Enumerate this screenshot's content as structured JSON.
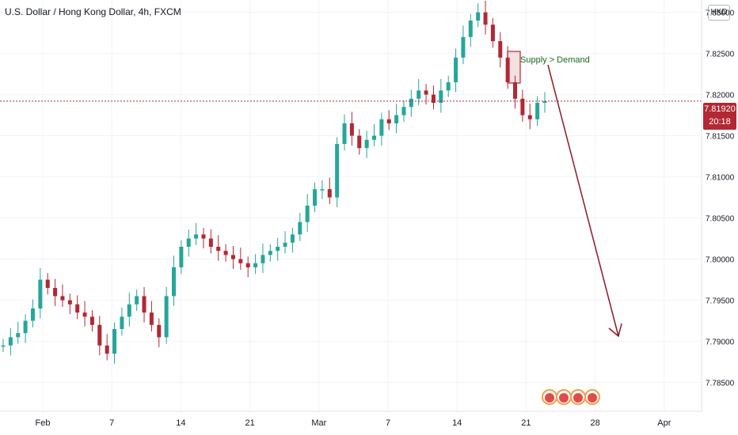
{
  "title": "U.S. Dollar / Hong Kong Dollar, 4h, FXCM",
  "currency": "HKD",
  "last_price": {
    "value": "7.81920",
    "countdown": "20:18"
  },
  "annotation": "Supply > Demand",
  "colors": {
    "up": "#26a69a",
    "down": "#b22833",
    "arrow": "#8b1a2b",
    "supply_box": "#b22833",
    "grid": "#f0f3fa",
    "price_line": "#b22833"
  },
  "badges": [
    "flag-icon",
    "flag-icon",
    "flag-icon",
    "flag-icon"
  ],
  "chart_data": {
    "type": "line",
    "title": "U.S. Dollar / Hong Kong Dollar, 4h, FXCM",
    "xlabel": "",
    "ylabel": "",
    "ylim": [
      7.7815,
      7.8315
    ],
    "y_ticks": [
      "7.83000",
      "7.82500",
      "7.82000",
      "7.81500",
      "7.81000",
      "7.80500",
      "7.80000",
      "7.79500",
      "7.79000",
      "7.78500"
    ],
    "x_ticks": [
      "Feb",
      "7",
      "14",
      "21",
      "Mar",
      "7",
      "14",
      "21",
      "28",
      "Apr"
    ],
    "grid": true,
    "series": [
      {
        "values": [
          7.7895,
          7.7905,
          7.791,
          7.7925,
          7.794,
          7.7975,
          7.7965,
          7.7955,
          7.795,
          7.7945,
          7.7935,
          7.793,
          7.792,
          7.7895,
          7.7885,
          7.7915,
          7.793,
          7.7945,
          7.7955,
          7.7935,
          7.792,
          7.7905,
          7.7955,
          7.799,
          7.8015,
          7.8025,
          7.803,
          7.8025,
          7.8015,
          7.801,
          7.8005,
          7.8,
          7.7995,
          7.799,
          7.7995,
          7.8005,
          7.801,
          7.8015,
          7.802,
          7.803,
          7.8045,
          7.8065,
          7.8085,
          7.8085,
          7.8075,
          7.814,
          7.8165,
          7.815,
          7.8135,
          7.8145,
          7.815,
          7.817,
          7.8165,
          7.8175,
          7.8185,
          7.8195,
          7.8205,
          7.82,
          7.819,
          7.8205,
          7.8215,
          7.8245,
          7.827,
          7.829,
          7.83,
          7.8285,
          7.8265,
          7.8245,
          7.8215,
          7.8195,
          7.8175,
          7.817,
          7.819,
          7.8192
        ],
        "forecast_end": 7.7902
      }
    ]
  }
}
